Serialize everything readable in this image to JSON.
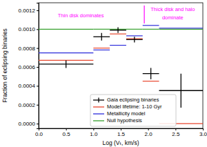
{
  "chart_data": {
    "type": "errorbar_step",
    "x_label": "Log (Vₜ, km/s)",
    "y_label": "Fraction of eclipsing binaries",
    "xlim": [
      0,
      3.0
    ],
    "ylim": [
      -5e-05,
      0.00128
    ],
    "xticks": [
      {
        "value": 0,
        "label": "0.0"
      },
      0.5,
      {
        "value": 1,
        "label": "1.0"
      },
      1.5,
      {
        "value": 2,
        "label": "2.0"
      },
      2.5,
      {
        "value": 3,
        "label": "3.0"
      }
    ],
    "yticks": [
      {
        "value": 0,
        "label": "0.0000"
      },
      {
        "value": 0.0002,
        "label": "0.0002"
      },
      {
        "value": 0.0004,
        "label": "0.0004"
      },
      {
        "value": 0.0006,
        "label": "0.0006"
      },
      {
        "value": 0.0008,
        "label": "0.0008"
      },
      {
        "value": 0.001,
        "label": "0.0010"
      },
      {
        "value": 0.0012,
        "label": "0.0012"
      }
    ],
    "bins": [
      0,
      1.0,
      1.3,
      1.6,
      1.9,
      2.2,
      3.0
    ],
    "legend": "lower center",
    "series": [
      {
        "name": "Gaia eclipsing binaries",
        "type": "errorbar",
        "color": "#000000",
        "marker": "cross",
        "x": [
          0.5,
          1.15,
          1.45,
          1.75,
          2.05,
          2.6
        ],
        "xerr": [
          0.5,
          0.15,
          0.15,
          0.15,
          0.15,
          0.4
        ],
        "values": [
          0.00063,
          0.00092,
          0.00099,
          0.00089,
          0.00053,
          0.00035
        ],
        "yerr": [
          4e-05,
          4e-05,
          3e-05,
          3e-05,
          6e-05,
          0.00018
        ]
      },
      {
        "name": "Model lifetime: 1-10 Gyr",
        "type": "step",
        "color": "#e8452c",
        "line_style": "solid",
        "values": [
          0.00067,
          0.0008,
          0.00095,
          0.0009,
          0.00045,
          0.0
        ]
      },
      {
        "name": "Metallicity model",
        "type": "step",
        "color": "#2b2bdb",
        "line_style": "solid",
        "values": [
          0.00075,
          0.00078,
          0.00083,
          0.00093,
          0.00104,
          0.00101
        ]
      },
      {
        "name": "Null hypothesis",
        "type": "step",
        "color": "#35a02c",
        "line_style": "solid",
        "values": [
          0.001,
          0.001,
          0.001,
          0.001,
          0.001,
          0.001
        ]
      }
    ],
    "annotations": [
      {
        "text": "Thin disk dominates",
        "x": 0.35,
        "y": 0.00114,
        "color": "magenta"
      },
      {
        "text": "Thick disk and halo",
        "x": 2.45,
        "y": 0.00121,
        "color": "magenta"
      },
      {
        "text": "dominate",
        "x": 2.45,
        "y": 0.00112,
        "color": "magenta"
      }
    ],
    "divider": {
      "x": 1.93,
      "y": [
        0.00106,
        0.00125
      ],
      "color": "magenta"
    }
  }
}
